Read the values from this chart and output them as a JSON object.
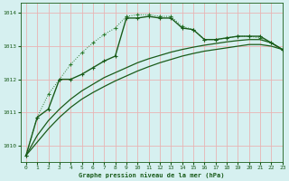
{
  "title": "Graphe pression niveau de la mer (hPa)",
  "bg_color": "#d6f0f0",
  "grid_color": "#e8b4b4",
  "line_color_dark": "#1a5c1a",
  "line_color_mid": "#2d7a2d",
  "xlim": [
    -0.5,
    23
  ],
  "ylim": [
    1009.5,
    1014.3
  ],
  "yticks": [
    1010,
    1011,
    1012,
    1013,
    1014
  ],
  "xticks": [
    0,
    1,
    2,
    3,
    4,
    5,
    6,
    7,
    8,
    9,
    10,
    11,
    12,
    13,
    14,
    15,
    16,
    17,
    18,
    19,
    20,
    21,
    22,
    23
  ],
  "line_dotted_x": [
    0,
    1,
    2,
    3,
    4,
    5,
    6,
    7,
    8,
    9,
    10,
    11,
    12,
    13,
    14,
    15,
    16,
    17,
    18,
    19,
    20,
    21,
    22,
    23
  ],
  "line_dotted_y": [
    1009.7,
    1010.85,
    1011.55,
    1012.0,
    1012.45,
    1012.8,
    1013.1,
    1013.35,
    1013.55,
    1013.9,
    1013.95,
    1013.95,
    1013.9,
    1013.9,
    1013.6,
    1013.5,
    1013.2,
    1013.2,
    1013.25,
    1013.3,
    1013.3,
    1013.25,
    1013.1,
    1012.9
  ],
  "line_solid_markers_x": [
    0,
    1,
    2,
    3,
    4,
    5,
    6,
    7,
    8,
    9,
    10,
    11,
    12,
    13,
    14,
    15,
    16,
    17,
    18,
    19,
    20,
    21,
    22,
    23
  ],
  "line_solid_markers_y": [
    1009.7,
    1010.85,
    1011.1,
    1012.0,
    1012.0,
    1012.15,
    1012.35,
    1012.55,
    1012.7,
    1013.85,
    1013.85,
    1013.9,
    1013.85,
    1013.85,
    1013.55,
    1013.5,
    1013.2,
    1013.2,
    1013.25,
    1013.3,
    1013.3,
    1013.3,
    1013.1,
    1012.9
  ],
  "line_smooth1_x": [
    0,
    1,
    2,
    3,
    4,
    5,
    6,
    7,
    8,
    9,
    10,
    11,
    12,
    13,
    14,
    15,
    16,
    17,
    18,
    19,
    20,
    21,
    22,
    23
  ],
  "line_smooth1_y": [
    1009.7,
    1010.1,
    1010.5,
    1010.85,
    1011.15,
    1011.4,
    1011.6,
    1011.78,
    1011.95,
    1012.1,
    1012.25,
    1012.38,
    1012.5,
    1012.6,
    1012.7,
    1012.78,
    1012.85,
    1012.9,
    1012.95,
    1013.0,
    1013.05,
    1013.05,
    1013.0,
    1012.9
  ],
  "line_smooth2_x": [
    0,
    1,
    2,
    3,
    4,
    5,
    6,
    7,
    8,
    9,
    10,
    11,
    12,
    13,
    14,
    15,
    16,
    17,
    18,
    19,
    20,
    21,
    22,
    23
  ],
  "line_smooth2_y": [
    1009.7,
    1010.3,
    1010.75,
    1011.1,
    1011.4,
    1011.65,
    1011.85,
    1012.05,
    1012.2,
    1012.35,
    1012.5,
    1012.62,
    1012.72,
    1012.82,
    1012.9,
    1012.97,
    1013.03,
    1013.08,
    1013.13,
    1013.17,
    1013.2,
    1013.2,
    1013.1,
    1012.9
  ]
}
